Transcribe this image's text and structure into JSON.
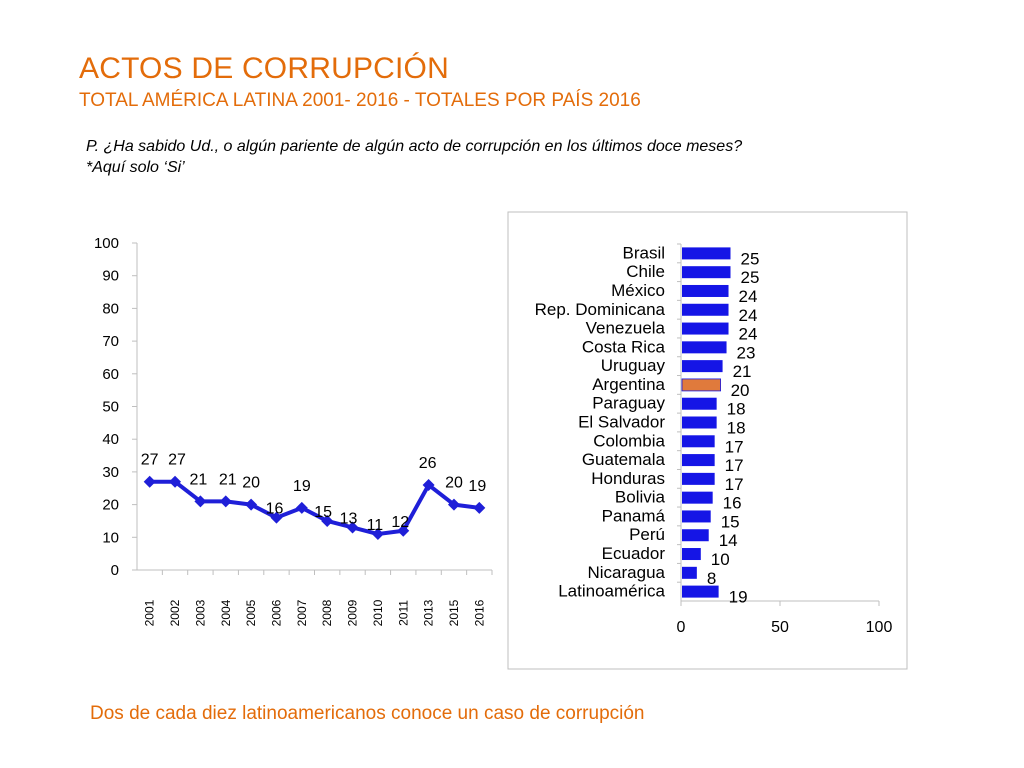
{
  "header": {
    "title": "ACTOS DE CORRUPCIÓN",
    "subtitle": "TOTAL AMÉRICA LATINA 2001- 2016 - TOTALES POR PAÍS 2016"
  },
  "question": {
    "line1": "P. ¿Ha sabido Ud., o algún pariente de algún acto de corrupción en los últimos doce meses?",
    "line2": "*Aquí solo ‘Si’"
  },
  "footer": {
    "text": "Dos de cada diez latinoamericanos conoce un caso de corrupción"
  },
  "colors": {
    "accent": "#E36C0A",
    "series_line": "#1F1FD8",
    "bar": "#1515E6",
    "bar_highlight": "#E07A3C"
  },
  "chart_data": [
    {
      "type": "line",
      "x": [
        "2001",
        "2002",
        "2003",
        "2004",
        "2005",
        "2006",
        "2007",
        "2008",
        "2009",
        "2010",
        "2011",
        "2013",
        "2015",
        "2016"
      ],
      "values": [
        27,
        27,
        21,
        21,
        20,
        16,
        19,
        15,
        13,
        11,
        12,
        26,
        20,
        19
      ],
      "ylim": [
        0,
        100
      ],
      "yticks": [
        0,
        10,
        20,
        30,
        40,
        50,
        60,
        70,
        80,
        90,
        100
      ],
      "grid": false,
      "legend": "none",
      "marker": "diamond"
    },
    {
      "type": "bar",
      "orientation": "horizontal",
      "categories": [
        "Brasil",
        "Chile",
        "México",
        "Rep. Dominicana",
        "Venezuela",
        "Costa Rica",
        "Uruguay",
        "Argentina",
        "Paraguay",
        "El Salvador",
        "Colombia",
        "Guatemala",
        "Honduras",
        "Bolivia",
        "Panamá",
        "Perú",
        "Ecuador",
        "Nicaragua",
        "Latinoamérica"
      ],
      "values": [
        25,
        25,
        24,
        24,
        24,
        23,
        21,
        20,
        18,
        18,
        17,
        17,
        17,
        16,
        15,
        14,
        10,
        8,
        19
      ],
      "highlight": "Argentina",
      "xlim": [
        0,
        100
      ],
      "xticks": [
        0,
        50,
        100
      ],
      "grid": false,
      "legend": "none"
    }
  ]
}
